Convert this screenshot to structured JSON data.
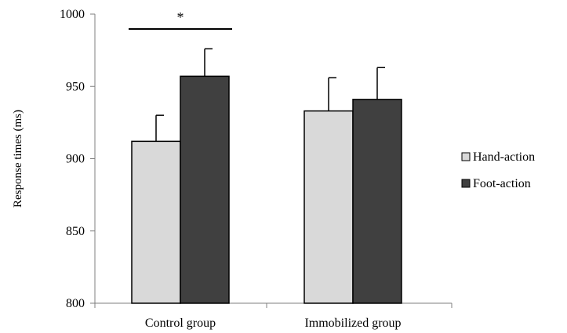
{
  "chart_data": {
    "type": "bar",
    "categories": [
      "Control group",
      "Immobilized group"
    ],
    "series": [
      {
        "name": "Hand-action",
        "values": [
          912,
          933
        ],
        "errors": [
          18,
          23
        ],
        "color": "#d9d9d9"
      },
      {
        "name": "Foot-action",
        "values": [
          957,
          941
        ],
        "errors": [
          19,
          22
        ],
        "color": "#404040"
      }
    ],
    "ylabel": "Response times  (ms)",
    "xlabel": "",
    "ylim": [
      800,
      1000
    ],
    "yticks": [
      800,
      850,
      900,
      950,
      1000
    ],
    "grid": false,
    "legend_position": "right",
    "annotations": [
      {
        "text": "*",
        "category": "Control group"
      }
    ]
  }
}
